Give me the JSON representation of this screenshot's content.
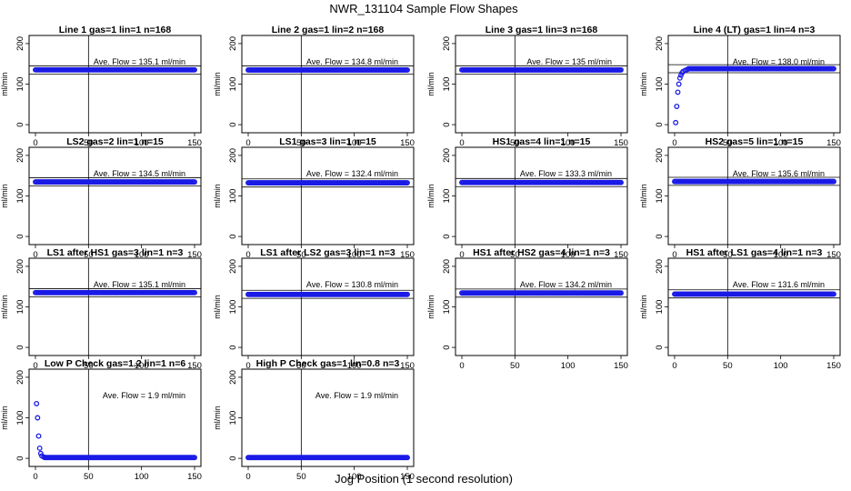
{
  "figure": {
    "title": "NWR_131104  Sample Flow Shapes",
    "xlabel": "Jog Position (1 second resolution)",
    "point_color": "#1a1ae6"
  },
  "chart_data": [
    {
      "type": "scatter",
      "title": "Line 1 gas=1 lin=1 n=168",
      "ylabel": "ml/min",
      "annotation": "Ave. Flow =  135.1  ml/min",
      "xlim": [
        0,
        150
      ],
      "ylim": [
        0,
        200
      ],
      "xticks": [
        0,
        50,
        100,
        150
      ],
      "yticks": [
        0,
        100,
        200
      ],
      "vline_x": 50,
      "hline_y": [
        125,
        145
      ],
      "mean": 135.1,
      "shape": "flat"
    },
    {
      "type": "scatter",
      "title": "Line 2 gas=1 lin=2 n=168",
      "ylabel": "ml/min",
      "annotation": "Ave. Flow =  134.8  ml/min",
      "xlim": [
        0,
        150
      ],
      "ylim": [
        0,
        200
      ],
      "xticks": [
        0,
        50,
        100,
        150
      ],
      "yticks": [
        0,
        100,
        200
      ],
      "vline_x": 50,
      "hline_y": [
        125,
        145
      ],
      "mean": 134.8,
      "shape": "flat"
    },
    {
      "type": "scatter",
      "title": "Line 3 gas=1 lin=3 n=168",
      "ylabel": "ml/min",
      "annotation": "Ave. Flow =  135  ml/min",
      "xlim": [
        0,
        150
      ],
      "ylim": [
        0,
        200
      ],
      "xticks": [
        0,
        50,
        100,
        150
      ],
      "yticks": [
        0,
        100,
        200
      ],
      "vline_x": 50,
      "hline_y": [
        125,
        145
      ],
      "mean": 135,
      "shape": "flat"
    },
    {
      "type": "scatter",
      "title": "Line 4 (LT) gas=1 lin=4 n=3",
      "ylabel": "ml/min",
      "annotation": "Ave. Flow =  138.0  ml/min",
      "xlim": [
        0,
        150
      ],
      "ylim": [
        0,
        200
      ],
      "xticks": [
        0,
        50,
        100,
        150
      ],
      "yticks": [
        0,
        100,
        200
      ],
      "vline_x": 50,
      "hline_y": [
        128,
        148
      ],
      "mean": 138,
      "shape": "rise",
      "head": [
        [
          1,
          5
        ],
        [
          2,
          45
        ],
        [
          3,
          80
        ],
        [
          4,
          100
        ],
        [
          5,
          115
        ],
        [
          6,
          122
        ],
        [
          7,
          128
        ],
        [
          8,
          131
        ],
        [
          10,
          134
        ],
        [
          12,
          136
        ]
      ]
    },
    {
      "type": "scatter",
      "title": "LS2 gas=2 lin=1 n=15",
      "ylabel": "ml/min",
      "annotation": "Ave. Flow =  134.5  ml/min",
      "xlim": [
        0,
        150
      ],
      "ylim": [
        0,
        200
      ],
      "xticks": [
        0,
        50,
        100,
        150
      ],
      "yticks": [
        0,
        100,
        200
      ],
      "vline_x": 50,
      "hline_y": [
        125,
        145
      ],
      "mean": 134.5,
      "shape": "flat"
    },
    {
      "type": "scatter",
      "title": "LS1 gas=3 lin=1 n=15",
      "ylabel": "ml/min",
      "annotation": "Ave. Flow =  132.4  ml/min",
      "xlim": [
        0,
        150
      ],
      "ylim": [
        0,
        200
      ],
      "xticks": [
        0,
        50,
        100,
        150
      ],
      "yticks": [
        0,
        100,
        200
      ],
      "vline_x": 50,
      "hline_y": [
        122,
        142
      ],
      "mean": 132.4,
      "shape": "flat"
    },
    {
      "type": "scatter",
      "title": "HS1 gas=4 lin=1 n=15",
      "ylabel": "ml/min",
      "annotation": "Ave. Flow =  133.3  ml/min",
      "xlim": [
        0,
        150
      ],
      "ylim": [
        0,
        200
      ],
      "xticks": [
        0,
        50,
        100,
        150
      ],
      "yticks": [
        0,
        100,
        200
      ],
      "vline_x": 50,
      "hline_y": [
        123,
        143
      ],
      "mean": 133.3,
      "shape": "flat"
    },
    {
      "type": "scatter",
      "title": "HS2 gas=5 lin=1 n=15",
      "ylabel": "ml/min",
      "annotation": "Ave. Flow =  135.6  ml/min",
      "xlim": [
        0,
        150
      ],
      "ylim": [
        0,
        200
      ],
      "xticks": [
        0,
        50,
        100,
        150
      ],
      "yticks": [
        0,
        100,
        200
      ],
      "vline_x": 50,
      "hline_y": [
        126,
        146
      ],
      "mean": 135.6,
      "shape": "flat"
    },
    {
      "type": "scatter",
      "title": "LS1 after HS1 gas=3 lin=1 n=3",
      "ylabel": "ml/min",
      "annotation": "Ave. Flow =  135.1  ml/min",
      "xlim": [
        0,
        150
      ],
      "ylim": [
        0,
        200
      ],
      "xticks": [
        0,
        50,
        100,
        150
      ],
      "yticks": [
        0,
        100,
        200
      ],
      "vline_x": 50,
      "hline_y": [
        125,
        145
      ],
      "mean": 135.1,
      "shape": "flat"
    },
    {
      "type": "scatter",
      "title": "LS1 after LS2 gas=3 lin=1 n=3",
      "ylabel": "ml/min",
      "annotation": "Ave. Flow =  130.8  ml/min",
      "xlim": [
        0,
        150
      ],
      "ylim": [
        0,
        200
      ],
      "xticks": [
        0,
        50,
        100,
        150
      ],
      "yticks": [
        0,
        100,
        200
      ],
      "vline_x": 50,
      "hline_y": [
        121,
        141
      ],
      "mean": 130.8,
      "shape": "flat"
    },
    {
      "type": "scatter",
      "title": "HS1 after HS2 gas=4 lin=1 n=3",
      "ylabel": "ml/min",
      "annotation": "Ave. Flow =  134.2  ml/min",
      "xlim": [
        0,
        150
      ],
      "ylim": [
        0,
        200
      ],
      "xticks": [
        0,
        50,
        100,
        150
      ],
      "yticks": [
        0,
        100,
        200
      ],
      "vline_x": 50,
      "hline_y": [
        124,
        144
      ],
      "mean": 134.2,
      "shape": "flat"
    },
    {
      "type": "scatter",
      "title": "HS1 after LS1 gas=4 lin=1 n=3",
      "ylabel": "ml/min",
      "annotation": "Ave. Flow =  131.6  ml/min",
      "xlim": [
        0,
        150
      ],
      "ylim": [
        0,
        200
      ],
      "xticks": [
        0,
        50,
        100,
        150
      ],
      "yticks": [
        0,
        100,
        200
      ],
      "vline_x": 50,
      "hline_y": [
        122,
        142
      ],
      "mean": 131.6,
      "shape": "flat"
    },
    {
      "type": "scatter",
      "title": "Low P Check gas=1.2 lin=1 n=6",
      "ylabel": "ml/min",
      "annotation": "Ave. Flow =  1.9  ml/min",
      "xlim": [
        0,
        150
      ],
      "ylim": [
        0,
        200
      ],
      "xticks": [
        0,
        50,
        100,
        150
      ],
      "yticks": [
        0,
        100,
        200
      ],
      "vline_x": 50,
      "hline_y": [],
      "mean": 1.9,
      "shape": "decay",
      "head": [
        [
          1,
          135
        ],
        [
          2,
          100
        ],
        [
          3,
          55
        ],
        [
          4,
          25
        ],
        [
          5,
          12
        ],
        [
          6,
          6
        ],
        [
          8,
          3
        ]
      ]
    },
    {
      "type": "scatter",
      "title": "High P Check gas=1 lin=0.8 n=3",
      "ylabel": "ml/min",
      "annotation": "Ave. Flow =  1.9  ml/min",
      "xlim": [
        0,
        150
      ],
      "ylim": [
        0,
        200
      ],
      "xticks": [
        0,
        50,
        100,
        150
      ],
      "yticks": [
        0,
        100,
        200
      ],
      "vline_x": 50,
      "hline_y": [],
      "mean": 1.9,
      "shape": "flat"
    }
  ]
}
